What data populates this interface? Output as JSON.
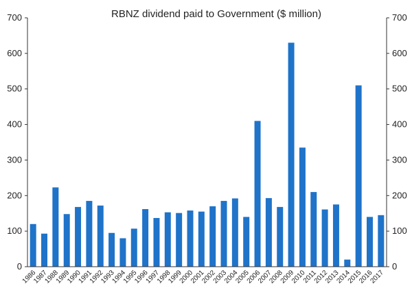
{
  "chart_data": {
    "type": "bar",
    "title": "RBNZ dividend paid to Government ($ million)",
    "categories": [
      "1986",
      "1987",
      "1988",
      "1989",
      "1990",
      "1991",
      "1992",
      "1993",
      "1994",
      "1995",
      "1996",
      "1997",
      "1998",
      "1999",
      "2000",
      "2001",
      "2002",
      "2003",
      "2004",
      "2005",
      "2006",
      "2007",
      "2008",
      "2009",
      "2010",
      "2011",
      "2012",
      "2013",
      "2014",
      "2015",
      "2016",
      "2017"
    ],
    "values": [
      120,
      93,
      223,
      148,
      168,
      185,
      172,
      95,
      80,
      107,
      162,
      137,
      153,
      151,
      158,
      155,
      170,
      185,
      192,
      140,
      410,
      193,
      168,
      630,
      335,
      210,
      161,
      175,
      20,
      510,
      140,
      145
    ],
    "ylim": [
      0,
      700
    ],
    "yticks": [
      0,
      100,
      200,
      300,
      400,
      500,
      600,
      700
    ],
    "grid": false,
    "legend": "none",
    "bar_color": "#1f73c9",
    "axis_color": "#333333"
  }
}
